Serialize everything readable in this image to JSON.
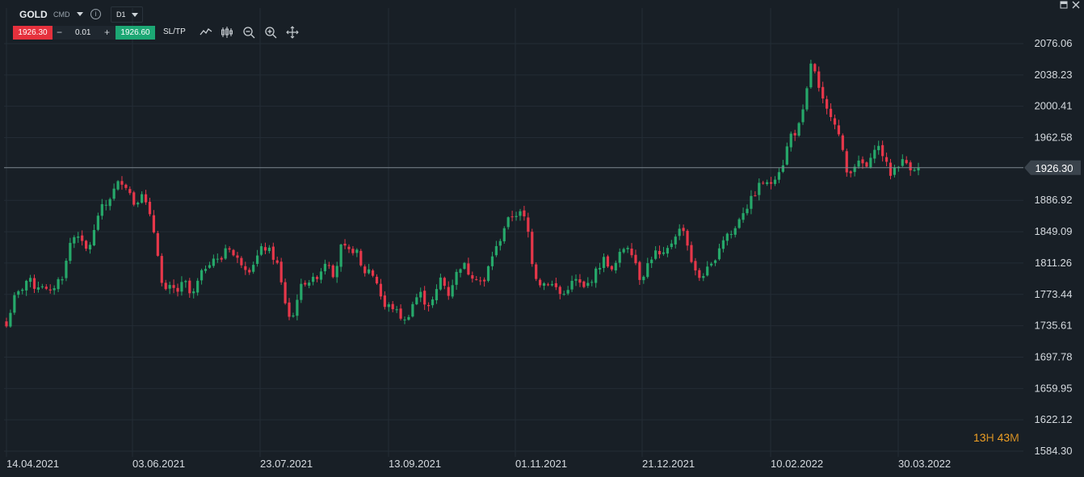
{
  "header": {
    "symbol": "GOLD",
    "symbol_type": "CMD",
    "info_icon": "info-icon",
    "timeframe": "D1"
  },
  "trade": {
    "sell_price": "1926.30",
    "lot_minus": "−",
    "lot_value": "0.01",
    "lot_plus": "+",
    "buy_price": "1926.60",
    "sltp_label": "SL/TP"
  },
  "toolbar": {
    "icons": [
      "line-chart-icon",
      "candlestick-icon",
      "zoom-out-icon",
      "zoom-in-icon",
      "crosshair-move-icon"
    ]
  },
  "window": {
    "icons": [
      "minimize-icon",
      "close-icon"
    ]
  },
  "countdown": {
    "hours": "13",
    "h_unit": "H",
    "minutes": "43",
    "m_unit": "M"
  },
  "colors": {
    "up": "#26a86a",
    "down": "#e6374a",
    "background": "#181f26",
    "grid": "#232c35",
    "sell": "#e6313d",
    "buy": "#1ca774",
    "countdown": "#f0a024"
  },
  "chart_data": {
    "type": "candlestick",
    "symbol": "GOLD",
    "timeframe": "D1",
    "y_ticks": [
      "2076.06",
      "2038.23",
      "2000.41",
      "1962.58",
      "1926.30",
      "1886.92",
      "1849.09",
      "1811.26",
      "1773.44",
      "1735.61",
      "1697.78",
      "1659.95",
      "1622.12",
      "1584.30"
    ],
    "x_ticks": [
      "14.04.2021",
      "03.06.2021",
      "23.07.2021",
      "13.09.2021",
      "01.11.2021",
      "21.12.2021",
      "10.02.2022",
      "30.03.2022"
    ],
    "y_range": [
      1584.3,
      2100
    ],
    "current_price": 1926.3,
    "current_price_label": "1926.30",
    "grid": true,
    "close_path": [
      1735,
      1768,
      1778,
      1793,
      1782,
      1786,
      1772,
      1788,
      1797,
      1838,
      1848,
      1825,
      1838,
      1875,
      1882,
      1898,
      1912,
      1903,
      1881,
      1898,
      1870,
      1840,
      1773,
      1782,
      1777,
      1790,
      1768,
      1792,
      1808,
      1818,
      1812,
      1836,
      1818,
      1812,
      1803,
      1816,
      1831,
      1825,
      1810,
      1768,
      1738,
      1778,
      1790,
      1790,
      1800,
      1818,
      1795,
      1832,
      1824,
      1829,
      1799,
      1804,
      1788,
      1758,
      1760,
      1750,
      1740,
      1762,
      1776,
      1760,
      1767,
      1795,
      1773,
      1796,
      1812,
      1798,
      1795,
      1785,
      1818,
      1833,
      1858,
      1869,
      1872,
      1862,
      1800,
      1786,
      1788,
      1783,
      1770,
      1785,
      1791,
      1780,
      1790,
      1805,
      1818,
      1800,
      1820,
      1835,
      1822,
      1790,
      1810,
      1825,
      1817,
      1830,
      1848,
      1854,
      1818,
      1792,
      1800,
      1808,
      1830,
      1847,
      1846,
      1870,
      1880,
      1895,
      1910,
      1904,
      1918,
      1932,
      1966,
      1970,
      1999,
      2058,
      2020,
      1996,
      1990,
      1960,
      1918,
      1930,
      1932,
      1925,
      1957,
      1942,
      1918,
      1930,
      1935,
      1926,
      1928
    ]
  }
}
